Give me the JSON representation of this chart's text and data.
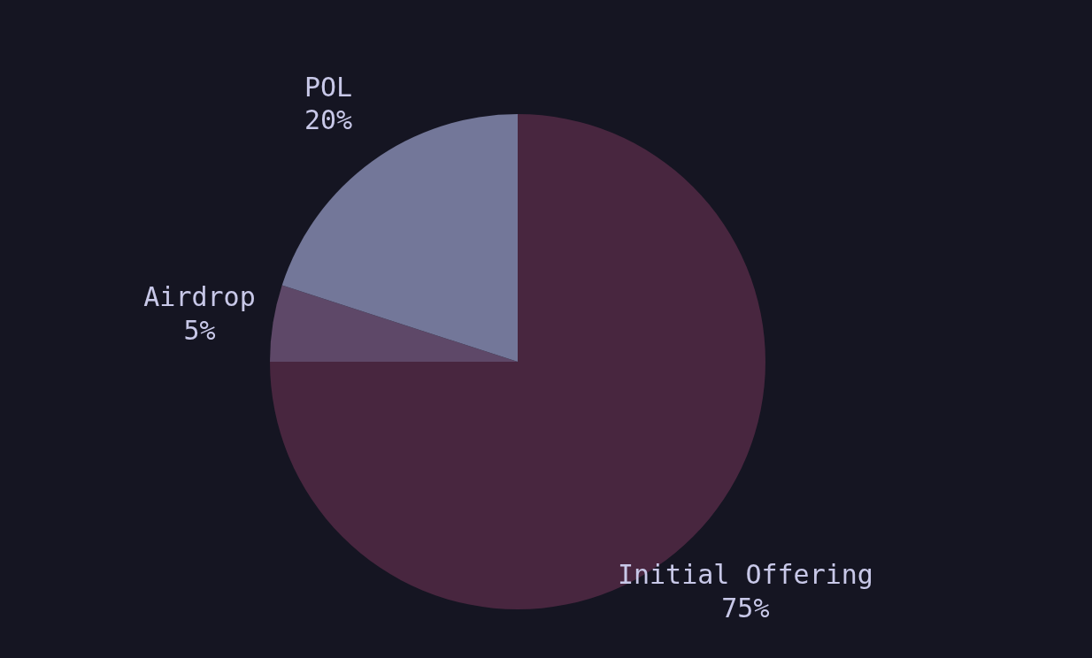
{
  "chart_data": {
    "type": "pie",
    "categories": [
      "Initial Offering",
      "Airdrop",
      "POL"
    ],
    "values": [
      75,
      5,
      20
    ],
    "colors": [
      "#48263f",
      "#5e4868",
      "#737799"
    ],
    "value_labels": [
      "75%",
      "5%",
      "20%"
    ]
  }
}
